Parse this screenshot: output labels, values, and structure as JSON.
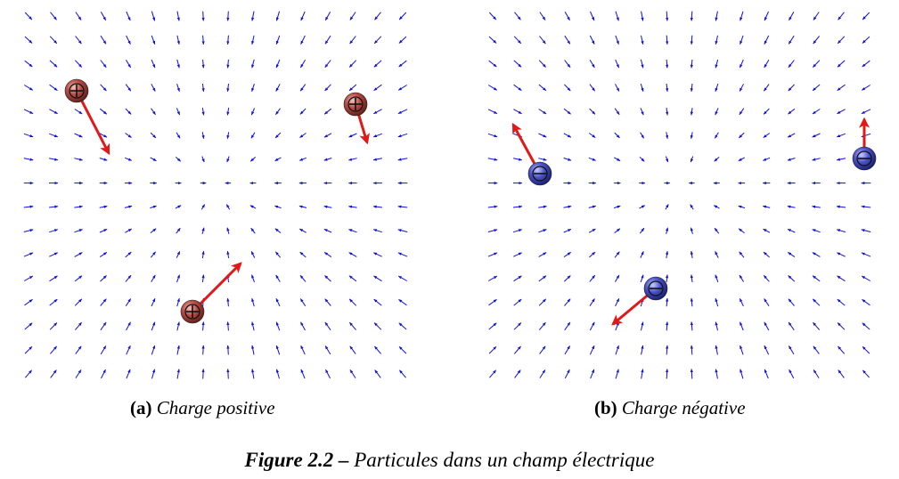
{
  "colors": {
    "field_arrow": "#1010dd",
    "force_arrow": "#e01818",
    "positive_charge": "#b84b44",
    "negative_charge": "#4a52c8"
  },
  "panels": [
    {
      "id": "a",
      "tag": "(a)",
      "caption": "Charge positive",
      "charge_sign": "positive",
      "charge_symbol_icon": "plus-icon",
      "particles": [
        {
          "name": "top-left"
        },
        {
          "name": "top-right"
        },
        {
          "name": "bottom"
        }
      ]
    },
    {
      "id": "b",
      "tag": "(b)",
      "caption": "Charge négative",
      "charge_sign": "negative",
      "charge_symbol_icon": "minus-icon",
      "particles": [
        {
          "name": "left"
        },
        {
          "name": "right"
        },
        {
          "name": "bottom"
        }
      ]
    }
  ],
  "figure": {
    "label": "Figure 2.2 –",
    "caption": "Particules dans un champ électrique"
  }
}
